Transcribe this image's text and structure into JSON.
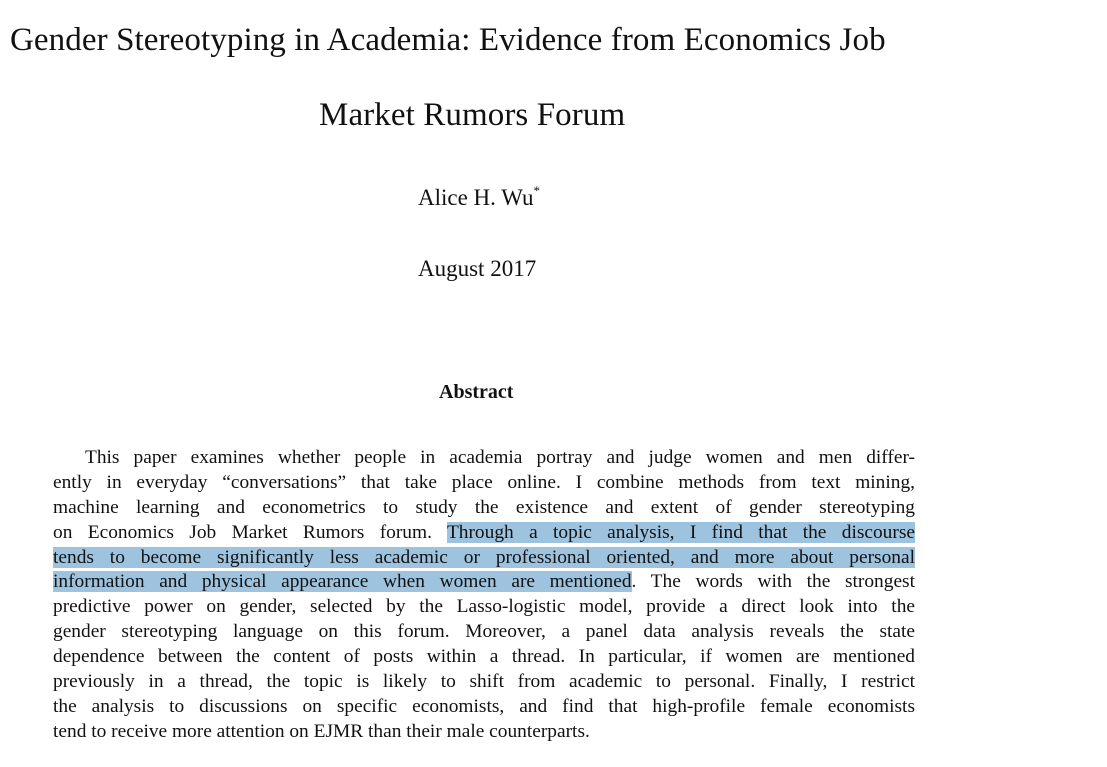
{
  "paper": {
    "title_line_1": "Gender Stereotyping in Academia: Evidence from Economics Job",
    "title_line_2": "Market Rumors Forum",
    "author": "Alice H. Wu",
    "author_footnote_mark": "*",
    "date": "August 2017",
    "abstract_heading": "Abstract",
    "highlight_color": "#9ec3df",
    "abstract_lines": [
      {
        "before": "This paper examines whether people in academia portray and judge women and men differ-",
        "highlight": "",
        "after": ""
      },
      {
        "before": "ently in everyday “conversations” that take place online. I combine methods from text mining,",
        "highlight": "",
        "after": ""
      },
      {
        "before": "machine learning and econometrics to study the existence and extent of gender stereotyping",
        "highlight": "",
        "after": ""
      },
      {
        "before": "on Economics Job Market Rumors forum. ",
        "highlight": "Through a topic analysis, I find that the discourse",
        "after": ""
      },
      {
        "before": "",
        "highlight": "tends to become significantly less academic or professional oriented, and more about personal",
        "after": ""
      },
      {
        "before": "",
        "highlight": "information and physical appearance when women are mentioned",
        "after": ". The words with the strongest"
      },
      {
        "before": "predictive power on gender, selected by the Lasso-logistic model, provide a direct look into the",
        "highlight": "",
        "after": ""
      },
      {
        "before": "gender stereotyping language on this forum. Moreover, a panel data analysis reveals the state",
        "highlight": "",
        "after": ""
      },
      {
        "before": "dependence between the content of posts within a thread. In particular, if women are mentioned",
        "highlight": "",
        "after": ""
      },
      {
        "before": "previously in a thread, the topic is likely to shift from academic to personal. Finally, I restrict",
        "highlight": "",
        "after": ""
      },
      {
        "before": "the analysis to discussions on specific economists, and find that high-profile female economists",
        "highlight": "",
        "after": ""
      },
      {
        "before": "tend to receive more attention on EJMR than their male counterparts.",
        "highlight": "",
        "after": ""
      }
    ]
  }
}
